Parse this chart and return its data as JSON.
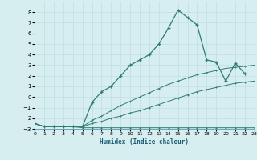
{
  "background_color": "#d6eef0",
  "grid_color": "#c0dde0",
  "line_color": "#2e7d6e",
  "xlabel": "Humidex (Indice chaleur)",
  "xlim": [
    0,
    23
  ],
  "ylim": [
    -3,
    9
  ],
  "yticks": [
    -3,
    -2,
    -1,
    0,
    1,
    2,
    3,
    4,
    5,
    6,
    7,
    8
  ],
  "xticks": [
    0,
    1,
    2,
    3,
    4,
    5,
    6,
    7,
    8,
    9,
    10,
    11,
    12,
    13,
    14,
    15,
    16,
    17,
    18,
    19,
    20,
    21,
    22,
    23
  ],
  "series1_x": [
    0,
    1,
    2,
    3,
    4,
    5,
    6,
    7,
    8,
    9,
    10,
    11,
    12,
    13,
    14,
    15,
    16,
    17,
    18,
    19,
    20,
    21,
    22,
    23
  ],
  "series1_y": [
    -2.5,
    -2.8,
    -2.8,
    -2.8,
    -2.8,
    -2.9,
    -2.9,
    -2.9,
    -2.9,
    -2.9,
    -2.9,
    -2.9,
    -2.9,
    -2.9,
    -2.9,
    -2.9,
    -2.9,
    -2.9,
    -2.9,
    -2.9,
    -2.9,
    -2.9,
    -2.9,
    -2.9
  ],
  "series2_x": [
    0,
    1,
    2,
    3,
    4,
    5,
    6,
    7,
    8,
    9,
    10,
    11,
    12,
    13,
    14,
    15,
    16,
    17,
    18,
    19,
    20,
    21,
    22,
    23
  ],
  "series2_y": [
    -2.5,
    -2.8,
    -2.8,
    -2.8,
    -2.8,
    -2.8,
    -2.5,
    -2.3,
    -2.0,
    -1.8,
    -1.5,
    -1.3,
    -1.0,
    -0.7,
    -0.4,
    -0.1,
    0.2,
    0.5,
    0.7,
    0.9,
    1.1,
    1.3,
    1.4,
    1.5
  ],
  "series3_x": [
    0,
    1,
    2,
    3,
    4,
    5,
    6,
    7,
    8,
    9,
    10,
    11,
    12,
    13,
    14,
    15,
    16,
    17,
    18,
    19,
    20,
    21,
    22,
    23
  ],
  "series3_y": [
    -2.5,
    -2.8,
    -2.8,
    -2.8,
    -2.8,
    -2.8,
    -2.2,
    -1.8,
    -1.3,
    -0.8,
    -0.4,
    0.0,
    0.4,
    0.8,
    1.2,
    1.5,
    1.8,
    2.1,
    2.3,
    2.5,
    2.7,
    2.8,
    2.9,
    3.0
  ],
  "series4_x": [
    0,
    1,
    2,
    3,
    4,
    5,
    6,
    7,
    8,
    9,
    10,
    11,
    12,
    13,
    14,
    15,
    16,
    17,
    18,
    19,
    20,
    21,
    22
  ],
  "series4_y": [
    -2.5,
    -2.8,
    -2.8,
    -2.8,
    -2.8,
    -2.8,
    -0.5,
    0.5,
    1.0,
    2.0,
    3.0,
    3.5,
    4.0,
    5.0,
    6.5,
    8.2,
    7.5,
    6.8,
    3.5,
    3.3,
    1.5,
    3.2,
    2.2
  ]
}
